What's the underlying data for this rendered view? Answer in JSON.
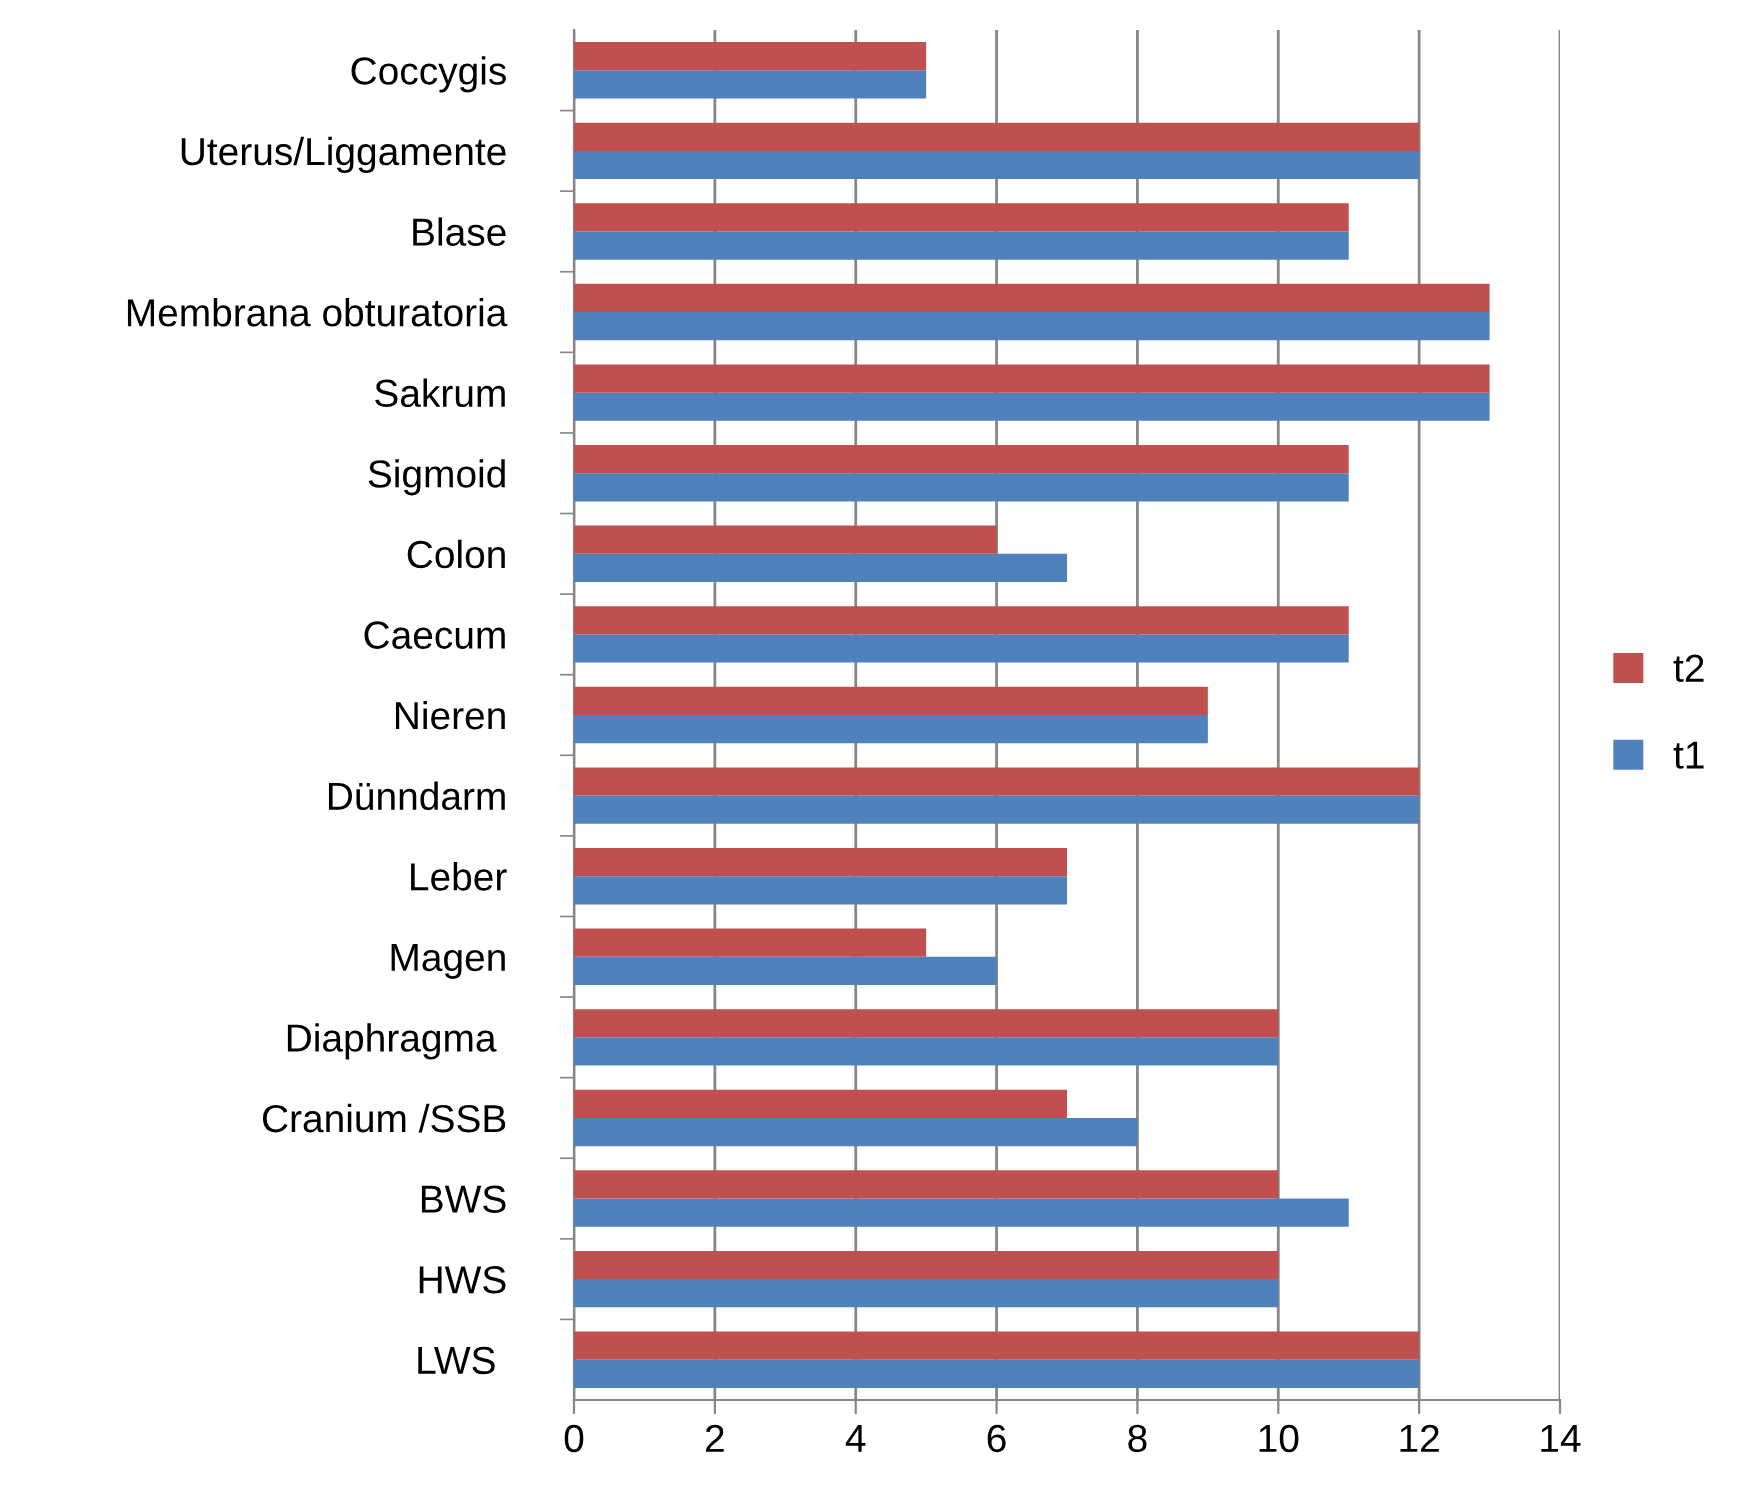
{
  "chart_data": {
    "type": "bar",
    "orientation": "horizontal",
    "categories": [
      "Coccygis",
      "Uterus/Liggamente",
      "Blase",
      "Membrana obturatoria",
      "Sakrum",
      "Sigmoid",
      "Colon",
      "Caecum",
      "Nieren",
      "Dünndarm",
      "Leber",
      "Magen",
      "Diaphragma ",
      "Cranium /SSB",
      "BWS",
      "HWS",
      "LWS "
    ],
    "series": [
      {
        "name": "t1",
        "color": "#4f81bd",
        "values": [
          5,
          12,
          11,
          13,
          13,
          11,
          7,
          11,
          9,
          12,
          7,
          6,
          10,
          8,
          11,
          10,
          12
        ]
      },
      {
        "name": "t2",
        "color": "#c0504d",
        "values": [
          5,
          12,
          11,
          13,
          13,
          11,
          6,
          11,
          9,
          12,
          7,
          5,
          10,
          7,
          10,
          10,
          12
        ]
      }
    ],
    "xlim": [
      0,
      14
    ],
    "xticks": [
      0,
      2,
      4,
      6,
      8,
      10,
      12,
      14
    ],
    "grid": "x",
    "legend": "right"
  }
}
